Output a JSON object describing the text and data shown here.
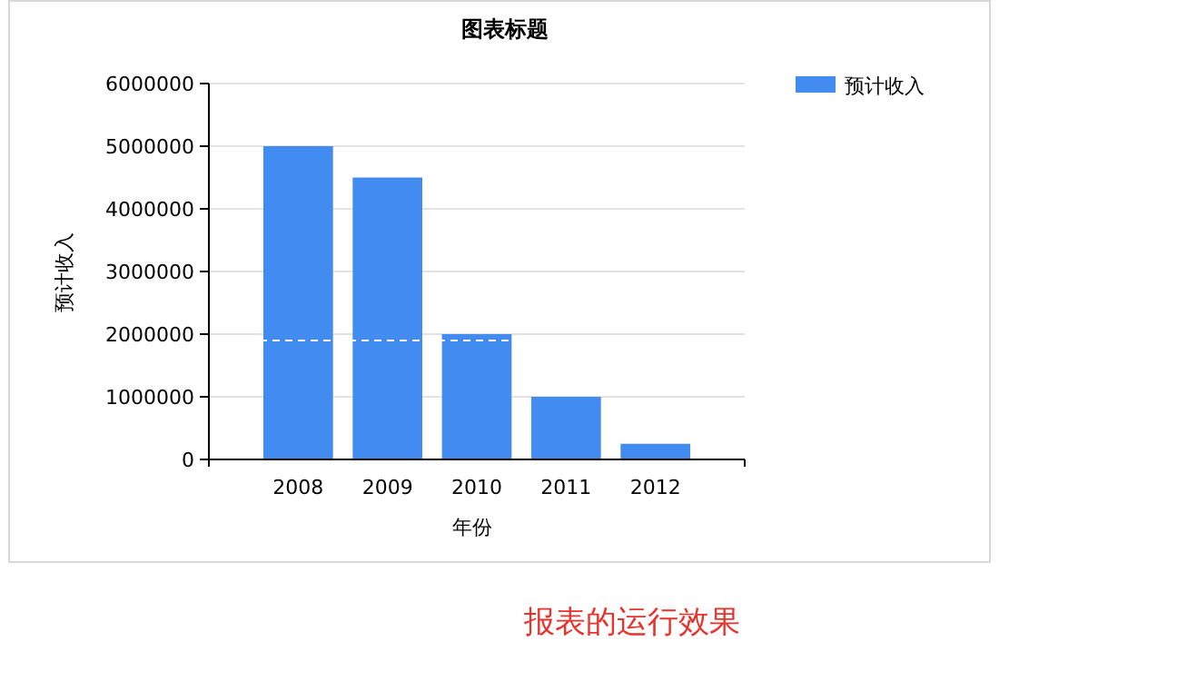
{
  "chart_data": {
    "type": "bar",
    "title": "图表标题",
    "xlabel": "年份",
    "ylabel": "预计收入",
    "categories": [
      "2008",
      "2009",
      "2010",
      "2011",
      "2012"
    ],
    "series": [
      {
        "name": "预计收入",
        "color": "#428bf0",
        "values": [
          5000000,
          4500000,
          2000000,
          1000000,
          250000
        ]
      }
    ],
    "ylim": [
      0,
      6000000
    ],
    "yticks": [
      0,
      1000000,
      2000000,
      3000000,
      4000000,
      5000000,
      6000000
    ],
    "grid": "y",
    "legend": "top right",
    "ref_lines": [
      {
        "axis": "y",
        "value": 1900000,
        "color": "#ffffff",
        "line_style": "dashed"
      }
    ],
    "annotations": [
      "报表的运行效果"
    ]
  }
}
